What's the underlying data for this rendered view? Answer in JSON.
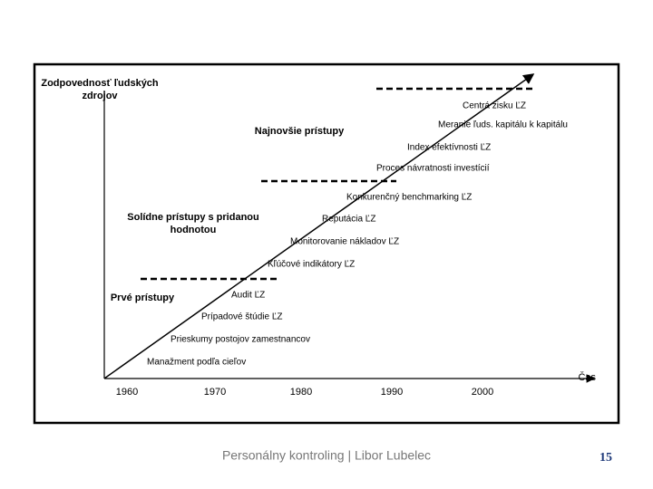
{
  "axes": {
    "y_label": [
      "Zodpovednosť ľudských",
      "zdrojov"
    ],
    "x_label": "Čas"
  },
  "eras": [
    {
      "label": [
        "Najnovšie prístupy"
      ]
    },
    {
      "label": [
        "Solídne prístupy s pridanou",
        "hodnotou"
      ]
    },
    {
      "label": [
        "Prvé prístupy"
      ]
    }
  ],
  "milestones": [
    "Centrá zisku ĽZ",
    "Meranie ľuds. kapitálu k kapitálu",
    "Index efektívnosti ĽZ",
    "Proces návratnosti investícií",
    "Konkurenčný benchmarking ĽZ",
    "Reputácia ĽZ",
    "Monitorovanie nákladov ĽZ",
    "Kľúčové indikátory ĽZ",
    "Audit ĽZ",
    "Prípadové štúdie ĽZ",
    "Prieskumy postojov zamestnancov",
    "Manažment podľa cieľov"
  ],
  "years": [
    1960,
    1970,
    1980,
    1990,
    2000
  ],
  "footer": {
    "text": "Personálny kontroling | Libor Lubelec",
    "page": 15
  }
}
